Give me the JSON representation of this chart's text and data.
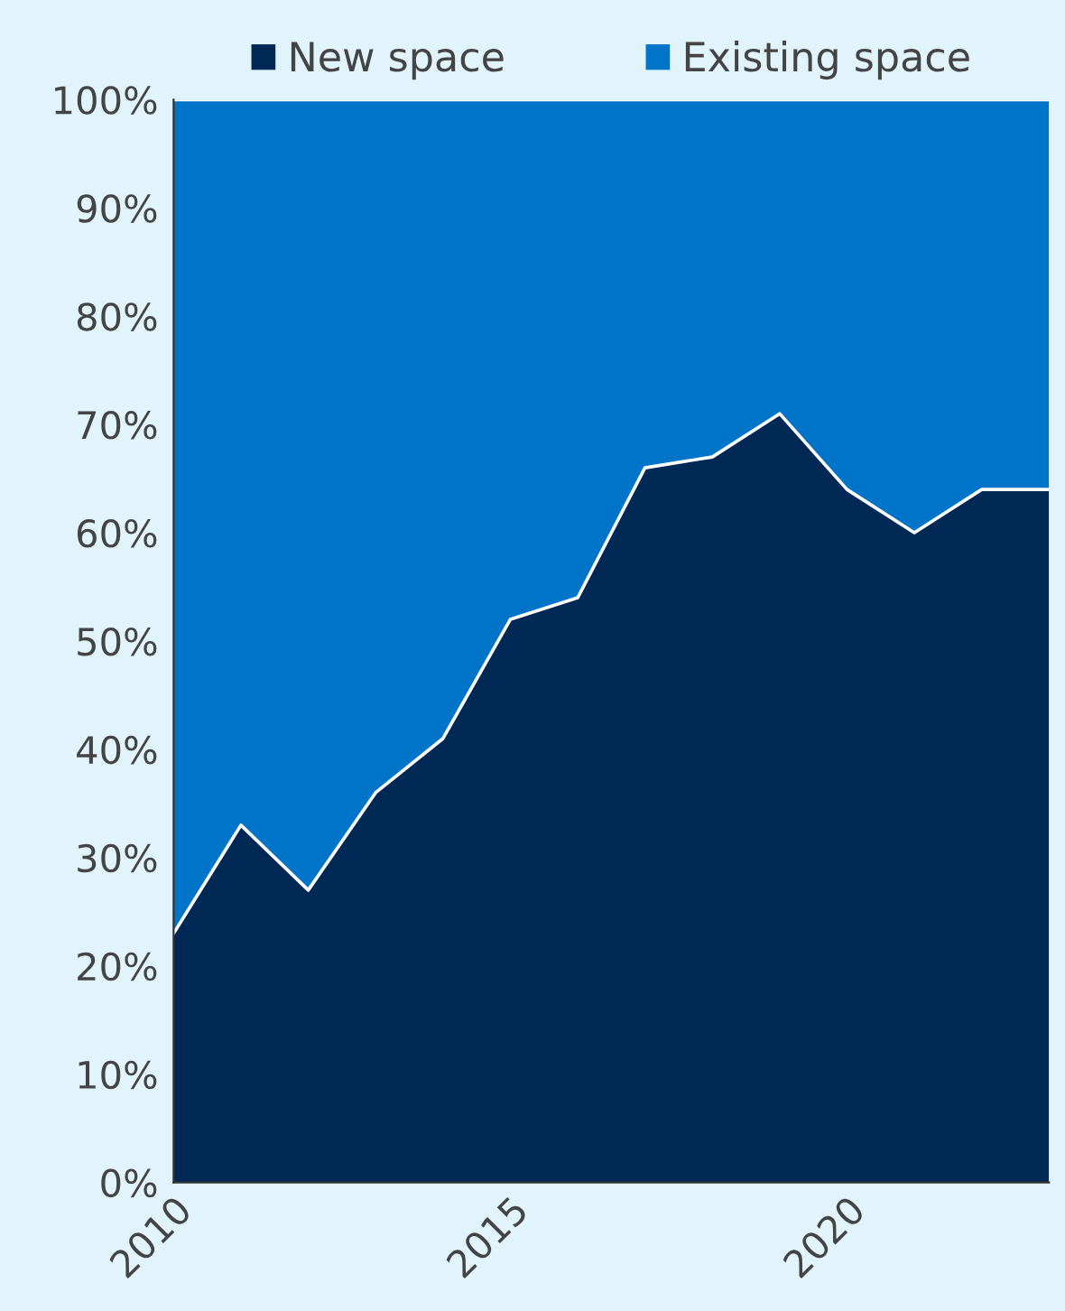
{
  "chart_data": {
    "type": "area",
    "stacked": true,
    "x": [
      2010,
      2011,
      2012,
      2013,
      2014,
      2015,
      2016,
      2017,
      2018,
      2019,
      2020,
      2021,
      2022,
      2023
    ],
    "series": [
      {
        "name": "New space",
        "color": "#002855",
        "values": [
          23,
          33,
          27,
          36,
          41,
          52,
          54,
          66,
          67,
          71,
          64,
          60,
          64,
          64
        ]
      },
      {
        "name": "Existing space",
        "color": "#0074c8",
        "values": [
          77,
          67,
          73,
          64,
          59,
          48,
          46,
          34,
          33,
          29,
          36,
          40,
          36,
          36
        ]
      }
    ],
    "xlim": [
      2010,
      2023
    ],
    "xticks": [
      2010,
      2015,
      2020
    ],
    "ylim": [
      0,
      100
    ],
    "yticks": [
      {
        "value": 0,
        "label": "0%"
      },
      {
        "value": 10,
        "label": "10%"
      },
      {
        "value": 20,
        "label": "20%"
      },
      {
        "value": 30,
        "label": "30%"
      },
      {
        "value": 40,
        "label": "40%"
      },
      {
        "value": 50,
        "label": "50%"
      },
      {
        "value": 60,
        "label": "60%"
      },
      {
        "value": 70,
        "label": "70%"
      },
      {
        "value": 80,
        "label": "80%"
      },
      {
        "value": 90,
        "label": "90%"
      },
      {
        "value": 100,
        "label": "100%"
      }
    ],
    "grid": false,
    "legend": "top"
  }
}
